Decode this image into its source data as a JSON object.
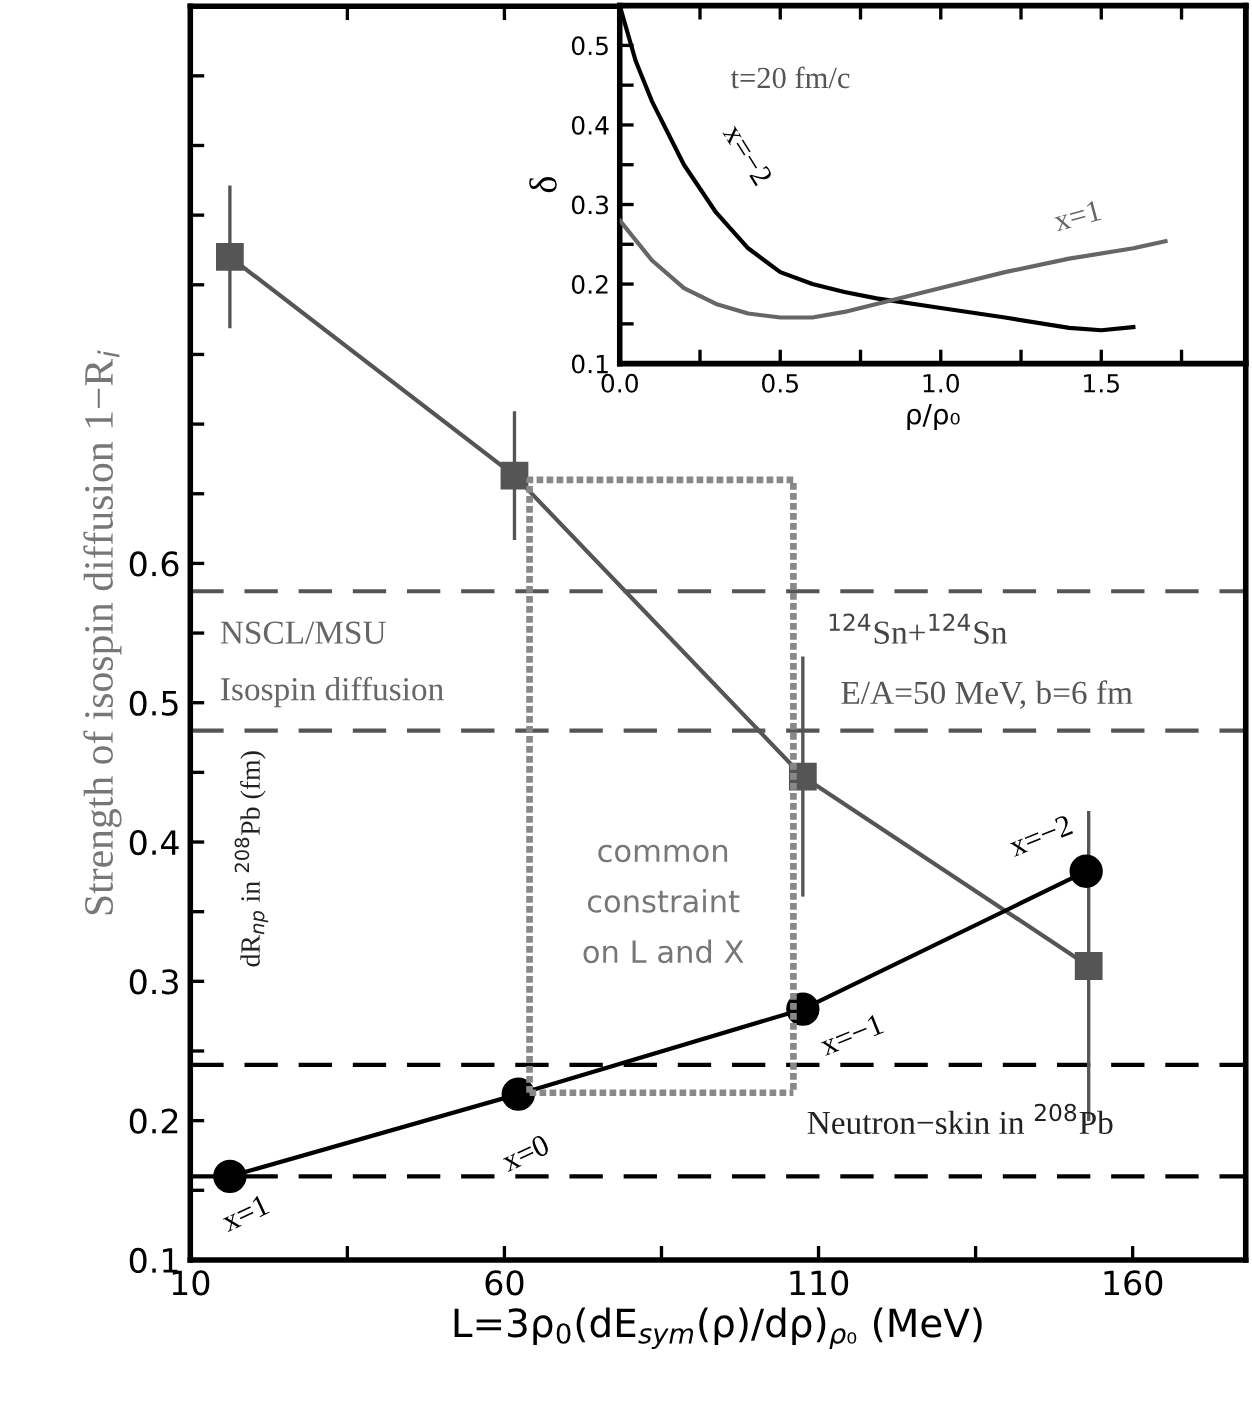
{
  "chart_data": [
    {
      "type": "line",
      "xlabel": "L=3ρ$_{0}$(dE$_{sym}$(ρ)/dρ)$_{ρ₀}$ (MeV)",
      "ylabel": "Strength of isospin diffusion 1−R$_{i}$",
      "xlim": [
        10,
        178
      ],
      "ylim": [
        0.1,
        1.0
      ],
      "xticks": [
        10,
        {
          "value": 35,
          "label": null
        },
        60,
        {
          "value": 85,
          "label": null
        },
        110,
        {
          "value": 135,
          "label": null
        },
        160
      ],
      "yticks": [
        0.1,
        {
          "value": 0.15,
          "label": null
        },
        0.2,
        {
          "value": 0.25,
          "label": null
        },
        0.3,
        {
          "value": 0.35,
          "label": null
        },
        0.4,
        {
          "value": 0.45,
          "label": null
        },
        0.5,
        {
          "value": 0.55,
          "label": null
        },
        0.6,
        {
          "value": 0.65,
          "label": null
        },
        {
          "value": 0.7,
          "label": null
        },
        {
          "value": 0.75,
          "label": null
        },
        {
          "value": 0.8,
          "label": null
        },
        {
          "value": 0.85,
          "label": null
        },
        {
          "value": 0.9,
          "label": null
        },
        {
          "value": 0.95,
          "label": null
        }
      ],
      "grid": false,
      "series": [
        {
          "color": "#555555",
          "marker": "square",
          "x": [
            16.3,
            61.6,
            107.5,
            153
          ],
          "values": [
            0.82,
            0.663,
            0.447,
            0.311
          ],
          "errors": [
            0.05,
            0.045,
            0.085,
            0.11
          ]
        },
        {
          "color": "#000000",
          "marker": "circle",
          "x": [
            16.3,
            62.2,
            107.5,
            152.6
          ],
          "values": [
            0.16,
            0.219,
            0.28,
            0.379
          ]
        },
        {
          "color": "#888888",
          "marker": "none",
          "line_style": "dotted",
          "x": [
            64,
            64,
            106,
            106
          ],
          "values": [
            0.22,
            0.66,
            0.66,
            0.22
          ]
        },
        {
          "color": "#888888",
          "marker": "none",
          "line_style": "dotted",
          "x": [
            64,
            106
          ],
          "values": [
            0.22,
            0.22
          ]
        }
      ],
      "ref_lines": [
        {
          "axis": "y",
          "value": 0.58,
          "color": "#555555",
          "line_style": "dashed"
        },
        {
          "axis": "y",
          "value": 0.48,
          "color": "#555555",
          "line_style": "dashed"
        },
        {
          "axis": "y",
          "value": 0.24,
          "color": "#000000",
          "line_style": "dashed"
        },
        {
          "axis": "y",
          "value": 0.16,
          "color": "#000000",
          "line_style": "dashed"
        }
      ],
      "annotations": [
        "NSCL/MSU",
        "Isospin diffusion",
        "$^{124}$Sn+$^{124}$Sn",
        "E/A=50 MeV, b=6 fm",
        "common\nconstraint\non L and X",
        "dR$_{np}$ in $^{208}$Pb (fm)",
        "Neutron−skin in $^{208}$Pb",
        {
          "text": "x=1",
          "x": 16.3,
          "y": 0.16
        },
        {
          "text": "x=0",
          "x": 62.2,
          "y": 0.219
        },
        {
          "text": "x=−1",
          "x": 107.5,
          "y": 0.28
        },
        {
          "text": "x=−2",
          "x": 152.6,
          "y": 0.379
        }
      ]
    },
    {
      "type": "line",
      "xlabel": "ρ/ρ₀",
      "ylabel": "δ",
      "xlim": [
        0,
        1.95
      ],
      "ylim": [
        0.1,
        0.55
      ],
      "xticks": [
        {
          "value": 0,
          "label": "0.0"
        },
        {
          "value": 0.25,
          "label": null
        },
        0.5,
        {
          "value": 0.75,
          "label": null
        },
        {
          "value": 1.0,
          "label": "1.0"
        },
        {
          "value": 1.25,
          "label": null
        },
        1.5,
        {
          "value": 1.75,
          "label": null
        }
      ],
      "yticks": [
        0.1,
        {
          "value": 0.15,
          "label": null
        },
        0.2,
        {
          "value": 0.25,
          "label": null
        },
        0.3,
        {
          "value": 0.35,
          "label": null
        },
        0.4,
        {
          "value": 0.45,
          "label": null
        },
        0.5
      ],
      "grid": false,
      "marker": "none",
      "series": [
        {
          "name": "x=−2",
          "color": "#000000",
          "x": [
            0,
            0.05,
            0.1,
            0.2,
            0.3,
            0.4,
            0.5,
            0.6,
            0.7,
            0.8,
            1.0,
            1.2,
            1.4,
            1.5,
            1.6
          ],
          "values": [
            0.55,
            0.48,
            0.43,
            0.35,
            0.29,
            0.245,
            0.215,
            0.2,
            0.19,
            0.182,
            0.17,
            0.158,
            0.145,
            0.142,
            0.146
          ]
        },
        {
          "name": "x=1",
          "color": "#666666",
          "x": [
            0,
            0.1,
            0.2,
            0.3,
            0.4,
            0.5,
            0.6,
            0.7,
            0.8,
            0.9,
            1.0,
            1.2,
            1.4,
            1.6,
            1.7
          ],
          "values": [
            0.28,
            0.23,
            0.195,
            0.175,
            0.163,
            0.158,
            0.158,
            0.165,
            0.175,
            0.185,
            0.195,
            0.215,
            0.232,
            0.245,
            0.254
          ]
        }
      ],
      "annotations": [
        "t=20 fm/c"
      ]
    }
  ]
}
